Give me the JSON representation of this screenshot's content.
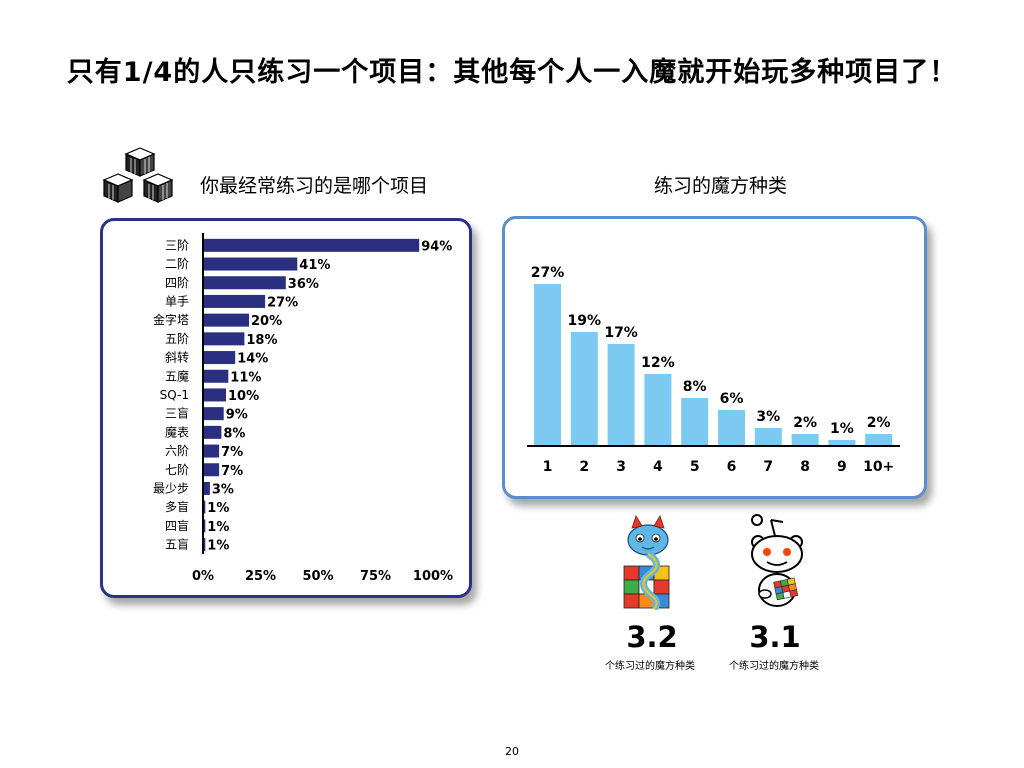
{
  "page": {
    "title": "只有1/4的人只练习一个项目：其他每个人一入魔就开始玩多种项目了！",
    "page_number": "20"
  },
  "left_panel": {
    "title": "你最经常练习的是哪个项目"
  },
  "right_panel": {
    "title": "练习的魔方种类"
  },
  "stats": [
    {
      "value": "3.2",
      "label": "个练习过的魔方种类"
    },
    {
      "value": "3.1",
      "label": "个练习过的魔方种类"
    }
  ],
  "colors": {
    "left_bar": "#2b2f82",
    "right_bar": "#7ccaf2",
    "axis": "#000000"
  },
  "chart_data": [
    {
      "type": "bar",
      "orientation": "horizontal",
      "title": "你最经常练习的是哪个项目",
      "categories": [
        "三阶",
        "二阶",
        "四阶",
        "单手",
        "金字塔",
        "五阶",
        "斜转",
        "五魔",
        "SQ-1",
        "三盲",
        "魔表",
        "六阶",
        "七阶",
        "最少步",
        "多盲",
        "四盲",
        "五盲"
      ],
      "values": [
        94,
        41,
        36,
        27,
        20,
        18,
        14,
        11,
        10,
        9,
        8,
        7,
        7,
        3,
        1,
        1,
        1
      ],
      "value_labels": [
        "94%",
        "41%",
        "36%",
        "27%",
        "20%",
        "18%",
        "14%",
        "11%",
        "10%",
        "9%",
        "8%",
        "7%",
        "7%",
        "3%",
        "1%",
        "1%",
        "1%"
      ],
      "xlim": [
        0,
        100
      ],
      "xticks": [
        0,
        25,
        50,
        75,
        100
      ],
      "xtick_labels": [
        "0%",
        "25%",
        "50%",
        "75%",
        "100%"
      ],
      "grid": false
    },
    {
      "type": "bar",
      "orientation": "vertical",
      "title": "练习的魔方种类",
      "categories": [
        "1",
        "2",
        "3",
        "4",
        "5",
        "6",
        "7",
        "8",
        "9",
        "10+"
      ],
      "values": [
        27,
        19,
        17,
        12,
        8,
        6,
        3,
        2,
        1,
        2
      ],
      "value_labels": [
        "27%",
        "19%",
        "17%",
        "12%",
        "8%",
        "6%",
        "3%",
        "2%",
        "1%",
        "2%"
      ],
      "ylim": [
        0,
        28
      ],
      "grid": false
    }
  ]
}
